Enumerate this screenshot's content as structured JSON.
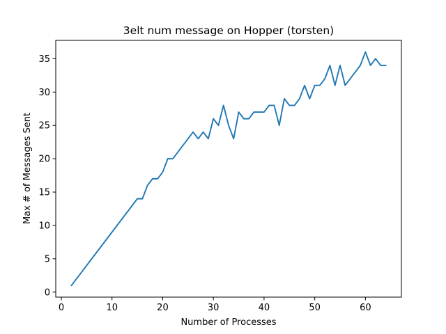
{
  "chart_data": {
    "type": "line",
    "title": "3elt num message on Hopper (torsten)",
    "xlabel": "Number of Processes",
    "ylabel": "Max # of Messages Sent",
    "xlim": [
      -1.1,
      67.1
    ],
    "ylim": [
      -0.75,
      37.75
    ],
    "xticks": [
      0,
      10,
      20,
      30,
      40,
      50,
      60
    ],
    "yticks": [
      0,
      5,
      10,
      15,
      20,
      25,
      30,
      35
    ],
    "grid": false,
    "line_color": "#1f77b4",
    "series": [
      {
        "x": [
          2,
          15,
          16,
          17,
          18,
          19,
          20,
          21,
          22,
          26,
          27,
          28,
          29,
          30,
          31,
          32,
          33,
          34,
          35,
          36,
          37,
          38,
          39,
          40,
          41,
          42,
          43,
          44,
          45,
          46,
          47,
          48,
          49,
          50,
          51,
          52,
          53,
          54,
          55,
          56,
          59,
          60,
          61,
          62,
          63,
          64
        ],
        "y": [
          1,
          14,
          14,
          16,
          17,
          17,
          18,
          20,
          20,
          24,
          23,
          24,
          23,
          26,
          25,
          28,
          25,
          23,
          27,
          26,
          26,
          27,
          27,
          27,
          28,
          28,
          25,
          29,
          28,
          28,
          29,
          31,
          29,
          31,
          31,
          32,
          34,
          31,
          34,
          31,
          34,
          36,
          34,
          35,
          34,
          34
        ]
      }
    ]
  }
}
